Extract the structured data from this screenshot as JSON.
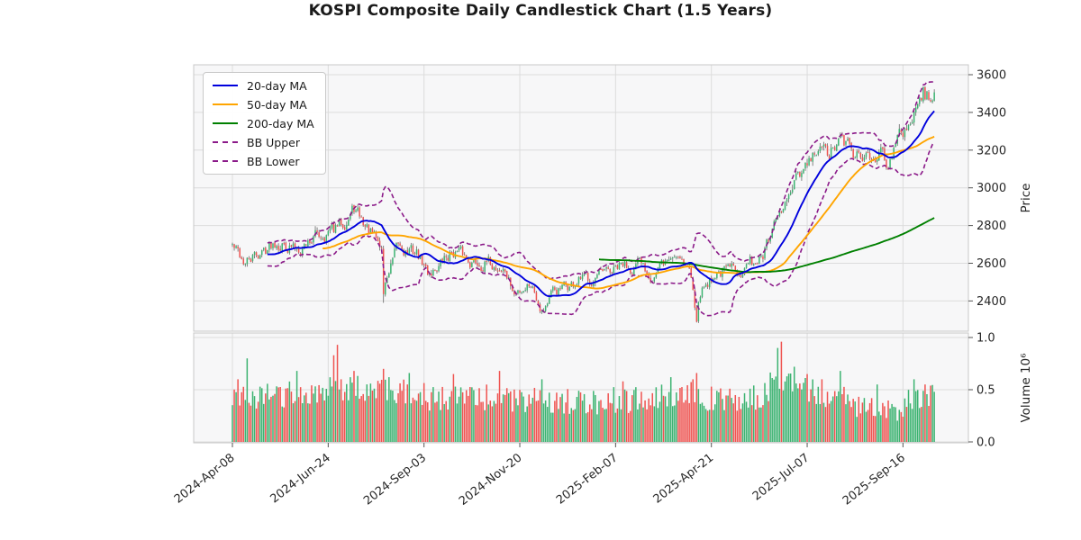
{
  "title": "KOSPI Composite Daily Candlestick Chart (1.5 Years)",
  "legend": {
    "items": [
      {
        "label": "20-day MA",
        "color": "#0000dd",
        "dashed": false
      },
      {
        "label": "50-day MA",
        "color": "#ffa500",
        "dashed": false
      },
      {
        "label": "200-day MA",
        "color": "#008000",
        "dashed": false
      },
      {
        "label": "BB Upper",
        "color": "#8b1a89",
        "dashed": true
      },
      {
        "label": "BB Lower",
        "color": "#8b1a89",
        "dashed": true
      }
    ]
  },
  "axes": {
    "price_label": "Price",
    "volume_label": "Volume  10⁶",
    "price_ticks": [
      2400,
      2600,
      2800,
      3000,
      3200,
      3400,
      3600
    ],
    "volume_ticks": [
      {
        "v": 0.0,
        "label": "0.0"
      },
      {
        "v": 0.5,
        "label": "0.5"
      },
      {
        "v": 1.0,
        "label": "1.0"
      }
    ],
    "x_ticks": [
      {
        "index": 0,
        "label": "2024-Apr-08"
      },
      {
        "index": 52,
        "label": "2024-Jun-24"
      },
      {
        "index": 104,
        "label": "2024-Sep-03"
      },
      {
        "index": 156,
        "label": "2024-Nov-20"
      },
      {
        "index": 208,
        "label": "2025-Feb-07"
      },
      {
        "index": 260,
        "label": "2025-Apr-21"
      },
      {
        "index": 312,
        "label": "2025-Jul-07"
      },
      {
        "index": 364,
        "label": "2025-Sep-16"
      }
    ]
  },
  "chart_data": {
    "type": "candlestick",
    "panels": [
      "price",
      "volume"
    ],
    "n_days": 382,
    "price_range": [
      2240,
      3655
    ],
    "volume_range": [
      0,
      1.043
    ],
    "price_keypoints": [
      [
        0,
        2695
      ],
      [
        7,
        2598
      ],
      [
        14,
        2645
      ],
      [
        24,
        2728
      ],
      [
        34,
        2678
      ],
      [
        45,
        2748
      ],
      [
        56,
        2775
      ],
      [
        66,
        2888
      ],
      [
        74,
        2772
      ],
      [
        81,
        2675
      ],
      [
        82,
        2445
      ],
      [
        84,
        2530
      ],
      [
        90,
        2680
      ],
      [
        100,
        2655
      ],
      [
        106,
        2548
      ],
      [
        113,
        2598
      ],
      [
        120,
        2668
      ],
      [
        130,
        2612
      ],
      [
        140,
        2595
      ],
      [
        148,
        2560
      ],
      [
        153,
        2428
      ],
      [
        158,
        2475
      ],
      [
        162,
        2505
      ],
      [
        168,
        2365
      ],
      [
        174,
        2440
      ],
      [
        182,
        2470
      ],
      [
        192,
        2515
      ],
      [
        202,
        2528
      ],
      [
        212,
        2582
      ],
      [
        220,
        2592
      ],
      [
        228,
        2542
      ],
      [
        238,
        2628
      ],
      [
        243,
        2662
      ],
      [
        248,
        2565
      ],
      [
        250,
        2482
      ],
      [
        252,
        2335
      ],
      [
        254,
        2448
      ],
      [
        262,
        2552
      ],
      [
        270,
        2562
      ],
      [
        280,
        2595
      ],
      [
        288,
        2638
      ],
      [
        294,
        2775
      ],
      [
        300,
        2905
      ],
      [
        306,
        3015
      ],
      [
        312,
        3105
      ],
      [
        318,
        3195
      ],
      [
        324,
        3175
      ],
      [
        330,
        3248
      ],
      [
        336,
        3195
      ],
      [
        342,
        3142
      ],
      [
        348,
        3205
      ],
      [
        352,
        3185
      ],
      [
        356,
        3142
      ],
      [
        360,
        3215
      ],
      [
        364,
        3295
      ],
      [
        368,
        3365
      ],
      [
        372,
        3445
      ],
      [
        374,
        3495
      ],
      [
        375,
        3525
      ],
      [
        376,
        3448
      ],
      [
        378,
        3475
      ],
      [
        381,
        3558
      ]
    ],
    "wick_events": [
      {
        "index": 82,
        "low": 2390
      },
      {
        "index": 252,
        "low": 2290
      }
    ],
    "volume_keypoints": [
      [
        0,
        0.42
      ],
      [
        30,
        0.45
      ],
      [
        56,
        0.52
      ],
      [
        82,
        0.5
      ],
      [
        110,
        0.42
      ],
      [
        150,
        0.42
      ],
      [
        180,
        0.38
      ],
      [
        210,
        0.4
      ],
      [
        250,
        0.45
      ],
      [
        262,
        0.4
      ],
      [
        285,
        0.42
      ],
      [
        296,
        0.6
      ],
      [
        300,
        0.55
      ],
      [
        312,
        0.48
      ],
      [
        330,
        0.42
      ],
      [
        344,
        0.3
      ],
      [
        356,
        0.28
      ],
      [
        366,
        0.38
      ],
      [
        381,
        0.42
      ]
    ],
    "volume_spikes": [
      [
        3,
        0.6
      ],
      [
        8,
        0.8
      ],
      [
        35,
        0.68
      ],
      [
        55,
        0.83
      ],
      [
        57,
        0.93
      ],
      [
        66,
        0.68
      ],
      [
        82,
        0.7
      ],
      [
        85,
        0.62
      ],
      [
        96,
        0.66
      ],
      [
        120,
        0.65
      ],
      [
        145,
        0.68
      ],
      [
        168,
        0.6
      ],
      [
        212,
        0.58
      ],
      [
        238,
        0.62
      ],
      [
        250,
        0.6
      ],
      [
        252,
        0.66
      ],
      [
        296,
        0.9
      ],
      [
        298,
        0.96
      ],
      [
        305,
        0.72
      ],
      [
        312,
        0.65
      ],
      [
        320,
        0.6
      ],
      [
        330,
        0.68
      ],
      [
        350,
        0.55
      ],
      [
        370,
        0.6
      ],
      [
        376,
        0.55
      ],
      [
        381,
        0.48
      ]
    ],
    "overlays": [
      {
        "name": "20-day MA",
        "window": 20
      },
      {
        "name": "50-day MA",
        "window": 50
      },
      {
        "name": "200-day MA",
        "window": 200
      }
    ],
    "bollinger": {
      "window": 20,
      "k": 2
    },
    "colors": {
      "up": "#3cb371",
      "down": "#ef5350",
      "wick": "#666666",
      "ma20": "#0000dd",
      "ma50": "#ffa500",
      "ma200": "#008000",
      "bb": "#8b1a89",
      "grid": "#dcdcdc",
      "panel_bg": "#f7f7f8",
      "spine": "#c8c8c8",
      "text": "#262626"
    }
  }
}
